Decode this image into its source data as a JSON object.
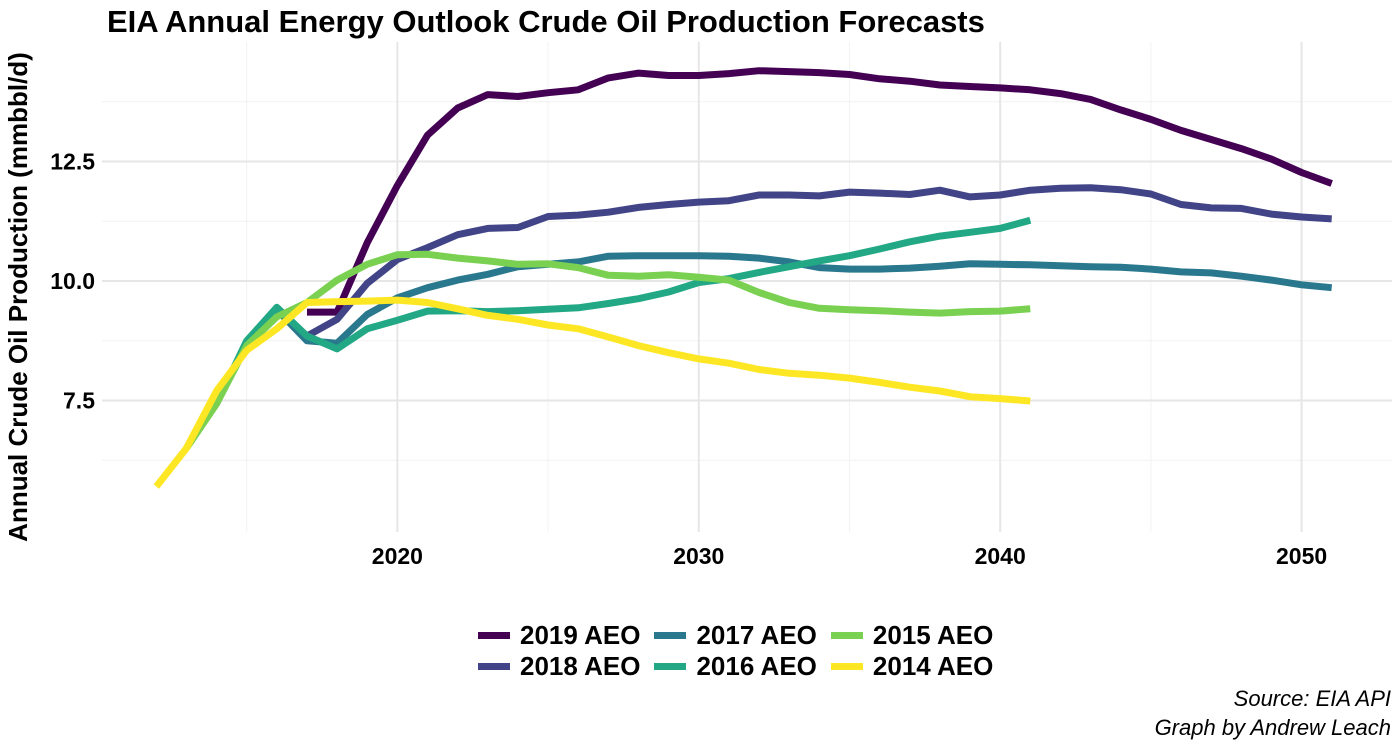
{
  "chart_data": {
    "type": "line",
    "title": "EIA Annual Energy Outlook Crude Oil Production Forecasts",
    "xlabel": "",
    "ylabel": "Annual Crude Oil Production (mmbbl/d)",
    "xlim": [
      2010.2,
      2053
    ],
    "ylim": [
      4.75,
      15.0
    ],
    "x_ticks": [
      "2020",
      "2030",
      "2040",
      "2050"
    ],
    "y_ticks": [
      "7.5",
      "10.0",
      "12.5"
    ],
    "grid": true,
    "legend_position": "bottom",
    "series": [
      {
        "name": "2019 AEO",
        "color": "#440154",
        "x": [
          2017,
          2018,
          2019,
          2020,
          2021,
          2022,
          2023,
          2024,
          2025,
          2026,
          2027,
          2028,
          2029,
          2030,
          2031,
          2032,
          2033,
          2034,
          2035,
          2036,
          2037,
          2038,
          2039,
          2040,
          2041,
          2042,
          2043,
          2044,
          2045,
          2046,
          2047,
          2048,
          2049,
          2050,
          2051
        ],
        "y": [
          9.35,
          9.35,
          10.8,
          12.0,
          13.05,
          13.62,
          13.9,
          13.86,
          13.94,
          14.0,
          14.25,
          14.35,
          14.3,
          14.3,
          14.34,
          14.4,
          14.38,
          14.36,
          14.32,
          14.23,
          14.18,
          14.1,
          14.07,
          14.04,
          14.0,
          13.92,
          13.8,
          13.58,
          13.38,
          13.15,
          12.96,
          12.77,
          12.55,
          12.27,
          12.04
        ]
      },
      {
        "name": "2018 AEO",
        "color": "#414487",
        "x": [
          2017,
          2018,
          2019,
          2020,
          2021,
          2022,
          2023,
          2024,
          2025,
          2026,
          2027,
          2028,
          2029,
          2030,
          2031,
          2032,
          2033,
          2034,
          2035,
          2036,
          2037,
          2038,
          2039,
          2040,
          2041,
          2042,
          2043,
          2044,
          2045,
          2046,
          2047,
          2048,
          2049,
          2050,
          2051
        ],
        "y": [
          8.85,
          9.2,
          9.95,
          10.45,
          10.7,
          10.97,
          11.1,
          11.12,
          11.35,
          11.38,
          11.44,
          11.54,
          11.6,
          11.65,
          11.68,
          11.8,
          11.8,
          11.78,
          11.86,
          11.84,
          11.81,
          11.9,
          11.76,
          11.8,
          11.9,
          11.94,
          11.95,
          11.91,
          11.82,
          11.6,
          11.53,
          11.52,
          11.4,
          11.34,
          11.3
        ]
      },
      {
        "name": "2017 AEO",
        "color": "#2a788e",
        "x": [
          2016,
          2017,
          2018,
          2019,
          2020,
          2021,
          2022,
          2023,
          2024,
          2025,
          2026,
          2027,
          2028,
          2029,
          2030,
          2031,
          2032,
          2033,
          2034,
          2035,
          2036,
          2037,
          2038,
          2039,
          2040,
          2041,
          2042,
          2043,
          2044,
          2045,
          2046,
          2047,
          2048,
          2049,
          2050,
          2051
        ],
        "y": [
          9.4,
          8.75,
          8.7,
          9.3,
          9.65,
          9.86,
          10.02,
          10.14,
          10.3,
          10.35,
          10.4,
          10.52,
          10.53,
          10.53,
          10.53,
          10.52,
          10.48,
          10.4,
          10.28,
          10.25,
          10.25,
          10.27,
          10.31,
          10.36,
          10.35,
          10.34,
          10.32,
          10.3,
          10.29,
          10.25,
          10.19,
          10.17,
          10.1,
          10.02,
          9.92,
          9.86
        ]
      },
      {
        "name": "2016 AEO",
        "color": "#22a884",
        "x": [
          2014,
          2015,
          2016,
          2017,
          2018,
          2019,
          2020,
          2021,
          2022,
          2023,
          2024,
          2025,
          2026,
          2027,
          2028,
          2029,
          2030,
          2031,
          2032,
          2033,
          2034,
          2035,
          2036,
          2037,
          2038,
          2039,
          2040,
          2041
        ],
        "y": [
          7.43,
          8.75,
          9.45,
          8.85,
          8.58,
          9.0,
          9.18,
          9.37,
          9.38,
          9.36,
          9.38,
          9.41,
          9.44,
          9.53,
          9.63,
          9.77,
          9.97,
          10.05,
          10.18,
          10.3,
          10.42,
          10.53,
          10.67,
          10.82,
          10.94,
          11.02,
          11.1,
          11.27
        ]
      },
      {
        "name": "2015 AEO",
        "color": "#7ad151",
        "x": [
          2013,
          2014,
          2015,
          2016,
          2017,
          2018,
          2019,
          2020,
          2021,
          2022,
          2023,
          2024,
          2025,
          2026,
          2027,
          2028,
          2029,
          2030,
          2031,
          2032,
          2033,
          2034,
          2035,
          2036,
          2037,
          2038,
          2039,
          2040,
          2041
        ],
        "y": [
          6.5,
          7.43,
          8.65,
          9.25,
          9.55,
          10.02,
          10.35,
          10.55,
          10.56,
          10.48,
          10.42,
          10.35,
          10.36,
          10.28,
          10.12,
          10.1,
          10.13,
          10.08,
          10.02,
          9.76,
          9.55,
          9.43,
          9.4,
          9.38,
          9.35,
          9.33,
          9.36,
          9.37,
          9.42
        ]
      },
      {
        "name": "2014 AEO",
        "color": "#fde725",
        "x": [
          2012,
          2013,
          2014,
          2015,
          2016,
          2017,
          2018,
          2019,
          2020,
          2021,
          2022,
          2023,
          2024,
          2025,
          2026,
          2027,
          2028,
          2029,
          2030,
          2031,
          2032,
          2033,
          2034,
          2035,
          2036,
          2037,
          2038,
          2039,
          2040,
          2041
        ],
        "y": [
          5.7,
          6.5,
          7.7,
          8.55,
          9.0,
          9.55,
          9.57,
          9.58,
          9.6,
          9.55,
          9.42,
          9.28,
          9.2,
          9.08,
          9.0,
          8.83,
          8.65,
          8.5,
          8.37,
          8.28,
          8.15,
          8.07,
          8.03,
          7.97,
          7.88,
          7.78,
          7.7,
          7.58,
          7.54,
          7.49
        ]
      }
    ]
  },
  "caption": {
    "source": "Source: EIA API",
    "credit": "Graph by Andrew Leach"
  }
}
